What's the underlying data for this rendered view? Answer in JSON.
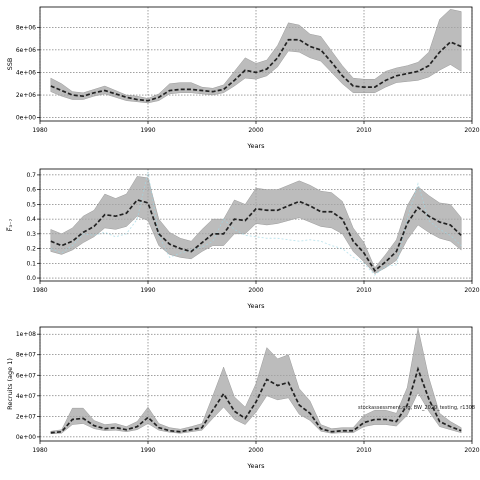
{
  "chart_data": [
    {
      "type": "area",
      "title": "",
      "xlabel": "Years",
      "ylabel": "SSB",
      "xlim": [
        1980,
        2020
      ],
      "ylim": [
        -300000,
        9800000
      ],
      "xticks": [
        1980,
        1990,
        2000,
        2010,
        2020
      ],
      "xtick_labels": [
        "1980",
        "1990",
        "2000",
        "2010",
        "2020"
      ],
      "yticks": [
        0,
        2000000,
        4000000,
        6000000,
        8000000
      ],
      "ytick_labels": [
        "0e+00",
        "2e+06",
        "4e+06",
        "6e+06",
        "8e+06"
      ],
      "grid": true,
      "x": [
        1981,
        1982,
        1983,
        1984,
        1985,
        1986,
        1987,
        1988,
        1989,
        1990,
        1991,
        1992,
        1993,
        1994,
        1995,
        1996,
        1997,
        1998,
        1999,
        2000,
        2001,
        2002,
        2003,
        2004,
        2005,
        2006,
        2007,
        2008,
        2009,
        2010,
        2011,
        2012,
        2013,
        2014,
        2015,
        2016,
        2017,
        2018,
        2019
      ],
      "series": [
        {
          "median": [
            2800000,
            2400000,
            2000000,
            1900000,
            2200000,
            2400000,
            2100000,
            1800000,
            1600000,
            1500000,
            1800000,
            2400000,
            2500000,
            2500000,
            2400000,
            2300000,
            2500000,
            3300000,
            4200000,
            4000000,
            4300000,
            5300000,
            6900000,
            6900000,
            6300000,
            6000000,
            4900000,
            3700000,
            2800000,
            2700000,
            2700000,
            3300000,
            3700000,
            3900000,
            4100000,
            4600000,
            5800000,
            6700000,
            6300000
          ],
          "lower": [
            2300000,
            1900000,
            1600000,
            1600000,
            1900000,
            2100000,
            1800000,
            1500000,
            1400000,
            1300000,
            1500000,
            2100000,
            2200000,
            2200000,
            2100000,
            2000000,
            2200000,
            2800000,
            3500000,
            3400000,
            3700000,
            4500000,
            5900000,
            5800000,
            5300000,
            5000000,
            4000000,
            3000000,
            2200000,
            2200000,
            2200000,
            2700000,
            3100000,
            3200000,
            3300000,
            3600000,
            4200000,
            4700000,
            4100000
          ],
          "upper": [
            3500000,
            3000000,
            2300000,
            2200000,
            2500000,
            2800000,
            2400000,
            2000000,
            1900000,
            1700000,
            2100000,
            3000000,
            3100000,
            3100000,
            2700000,
            2600000,
            2900000,
            4100000,
            5300000,
            4800000,
            5100000,
            6400000,
            8400000,
            8200000,
            7400000,
            7200000,
            5900000,
            4600000,
            3500000,
            3400000,
            3400000,
            4100000,
            4400000,
            4600000,
            4900000,
            5800000,
            8700000,
            9600000,
            9400000
          ]
        }
      ]
    },
    {
      "type": "area",
      "title": "",
      "xlabel": "Years",
      "ylabel": "F̅₃₋₇",
      "xlim": [
        1980,
        2020
      ],
      "ylim": [
        -0.02,
        0.74
      ],
      "xticks": [
        1980,
        1990,
        2000,
        2010,
        2020
      ],
      "xtick_labels": [
        "1980",
        "1990",
        "2000",
        "2010",
        "2020"
      ],
      "yticks": [
        0.0,
        0.1,
        0.2,
        0.3,
        0.4,
        0.5,
        0.6,
        0.7
      ],
      "ytick_labels": [
        "0.0",
        "0.1",
        "0.2",
        "0.3",
        "0.4",
        "0.5",
        "0.6",
        "0.7"
      ],
      "grid": true,
      "x": [
        1981,
        1982,
        1983,
        1984,
        1985,
        1986,
        1987,
        1988,
        1989,
        1990,
        1991,
        1992,
        1993,
        1994,
        1995,
        1996,
        1997,
        1998,
        1999,
        2000,
        2001,
        2002,
        2003,
        2004,
        2005,
        2006,
        2007,
        2008,
        2009,
        2010,
        2011,
        2012,
        2013,
        2014,
        2015,
        2016,
        2017,
        2018,
        2019
      ],
      "series": [
        {
          "median": [
            0.25,
            0.22,
            0.25,
            0.31,
            0.35,
            0.43,
            0.42,
            0.44,
            0.53,
            0.51,
            0.3,
            0.23,
            0.2,
            0.18,
            0.24,
            0.3,
            0.3,
            0.4,
            0.39,
            0.47,
            0.46,
            0.46,
            0.49,
            0.52,
            0.49,
            0.45,
            0.45,
            0.4,
            0.25,
            0.17,
            0.05,
            0.11,
            0.18,
            0.37,
            0.48,
            0.42,
            0.38,
            0.36,
            0.29
          ],
          "lower": [
            0.18,
            0.16,
            0.19,
            0.24,
            0.28,
            0.34,
            0.33,
            0.35,
            0.42,
            0.39,
            0.22,
            0.16,
            0.14,
            0.13,
            0.18,
            0.22,
            0.22,
            0.3,
            0.3,
            0.37,
            0.36,
            0.37,
            0.39,
            0.41,
            0.38,
            0.35,
            0.34,
            0.3,
            0.18,
            0.11,
            0.03,
            0.07,
            0.12,
            0.26,
            0.36,
            0.31,
            0.27,
            0.25,
            0.19
          ],
          "upper": [
            0.33,
            0.3,
            0.34,
            0.42,
            0.46,
            0.57,
            0.54,
            0.57,
            0.69,
            0.68,
            0.4,
            0.31,
            0.27,
            0.25,
            0.33,
            0.4,
            0.4,
            0.53,
            0.5,
            0.61,
            0.6,
            0.6,
            0.63,
            0.66,
            0.63,
            0.59,
            0.58,
            0.52,
            0.34,
            0.24,
            0.07,
            0.16,
            0.26,
            0.49,
            0.62,
            0.56,
            0.51,
            0.5,
            0.41
          ]
        }
      ],
      "ghost": [
        0.2,
        0.17,
        0.22,
        0.3,
        0.29,
        0.31,
        0.28,
        0.3,
        0.4,
        0.72,
        0.29,
        0.14,
        0.17,
        0.19,
        0.21,
        0.25,
        0.4,
        0.33,
        0.29,
        0.28,
        0.27,
        0.27,
        0.26,
        0.25,
        0.26,
        0.25,
        0.22,
        0.2,
        0.14,
        0.1,
        0.02,
        0.08,
        0.09,
        0.4,
        0.64,
        0.39,
        0.33,
        0.29,
        0.22
      ]
    },
    {
      "type": "area",
      "title": "",
      "xlabel": "Years",
      "ylabel": "Recruits (age 1)",
      "xlim": [
        1980,
        2020
      ],
      "ylim": [
        -4000000,
        107000000.0
      ],
      "xticks": [
        1980,
        1990,
        2000,
        2010,
        2020
      ],
      "xtick_labels": [
        "1980",
        "1990",
        "2000",
        "2010",
        "2020"
      ],
      "yticks": [
        0,
        20000000,
        40000000,
        60000000,
        80000000,
        100000000
      ],
      "ytick_labels": [
        "0e+00",
        "2e+07",
        "4e+07",
        "6e+07",
        "8e+07",
        "1e+08"
      ],
      "grid": true,
      "annotation": "stockassessment.org, BW_2020_testing, r1308",
      "x": [
        1981,
        1982,
        1983,
        1984,
        1985,
        1986,
        1987,
        1988,
        1989,
        1990,
        1991,
        1992,
        1993,
        1994,
        1995,
        1996,
        1997,
        1998,
        1999,
        2000,
        2001,
        2002,
        2003,
        2004,
        2005,
        2006,
        2007,
        2008,
        2009,
        2010,
        2011,
        2012,
        2013,
        2014,
        2015,
        2016,
        2017,
        2018,
        2019
      ],
      "series": [
        {
          "median": [
            4000000,
            5000000,
            17000000,
            18000000,
            11000000,
            8000000,
            9000000,
            7000000,
            10000000,
            19000000,
            9000000,
            6000000,
            5000000,
            7000000,
            9000000,
            26000000,
            42000000,
            25000000,
            18000000,
            34000000,
            56000000,
            50000000,
            53000000,
            31000000,
            23000000,
            8000000,
            5000000,
            6000000,
            6000000,
            14000000,
            17000000,
            17000000,
            15000000,
            31000000,
            66000000,
            37000000,
            15000000,
            10000000,
            6000000
          ],
          "lower": [
            3000000,
            3500000,
            12000000,
            13000000,
            8000000,
            6000000,
            6500000,
            5000000,
            7000000,
            13000000,
            6500000,
            4500000,
            3500000,
            5000000,
            6500000,
            18000000,
            29000000,
            17000000,
            12000000,
            24000000,
            40000000,
            36000000,
            38000000,
            22000000,
            16000000,
            5500000,
            3500000,
            4000000,
            4000000,
            10000000,
            12000000,
            12000000,
            10500000,
            21000000,
            43000000,
            25000000,
            10000000,
            7000000,
            4000000
          ],
          "upper": [
            5500000,
            7000000,
            28000000,
            28000000,
            16000000,
            12000000,
            13000000,
            10000000,
            15000000,
            29000000,
            13000000,
            9000000,
            7500000,
            10000000,
            13000000,
            40000000,
            68000000,
            39000000,
            29000000,
            52000000,
            87000000,
            76000000,
            80000000,
            47000000,
            35000000,
            12000000,
            8000000,
            9000000,
            9000000,
            21000000,
            26000000,
            26000000,
            23000000,
            48000000,
            106000000,
            58000000,
            23000000,
            15000000,
            9000000
          ]
        }
      ]
    }
  ]
}
